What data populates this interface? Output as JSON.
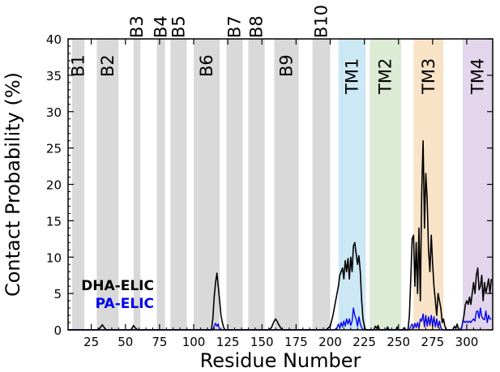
{
  "chart_data": {
    "type": "line",
    "xlabel": "Residue Number",
    "ylabel": "Contact Probability (%)",
    "xlim": [
      8,
      319
    ],
    "ylim": [
      0,
      40
    ],
    "xticks": [
      25,
      50,
      75,
      100,
      125,
      150,
      175,
      200,
      225,
      250,
      275,
      300
    ],
    "yticks": [
      0,
      5,
      10,
      15,
      20,
      25,
      30,
      35,
      40
    ],
    "grid": false,
    "legend_position": "bottom-left",
    "regions": [
      {
        "label": "B1",
        "start": 11,
        "end": 20,
        "color": "#d9d9d9",
        "label_row": "inside"
      },
      {
        "label": "B2",
        "start": 29,
        "end": 45,
        "color": "#d9d9d9",
        "label_row": "inside"
      },
      {
        "label": "B3",
        "start": 56,
        "end": 61,
        "color": "#d9d9d9",
        "label_row": "top"
      },
      {
        "label": "B4",
        "start": 73,
        "end": 79,
        "color": "#d9d9d9",
        "label_row": "top"
      },
      {
        "label": "B5",
        "start": 83,
        "end": 95,
        "color": "#d9d9d9",
        "label_row": "top"
      },
      {
        "label": "B6",
        "start": 100,
        "end": 119,
        "color": "#d9d9d9",
        "label_row": "inside"
      },
      {
        "label": "B7",
        "start": 124,
        "end": 136,
        "color": "#d9d9d9",
        "label_row": "top"
      },
      {
        "label": "B8",
        "start": 140,
        "end": 152,
        "color": "#d9d9d9",
        "label_row": "top"
      },
      {
        "label": "B9",
        "start": 159,
        "end": 177,
        "color": "#d9d9d9",
        "label_row": "inside"
      },
      {
        "label": "B10",
        "start": 187,
        "end": 200,
        "color": "#d9d9d9",
        "label_row": "top"
      },
      {
        "label": "TM1",
        "start": 206,
        "end": 226,
        "color": "#cde8f5",
        "label_row": "inside"
      },
      {
        "label": "TM2",
        "start": 229,
        "end": 252,
        "color": "#dcebd4",
        "label_row": "inside"
      },
      {
        "label": "TM3",
        "start": 261,
        "end": 283,
        "color": "#f8e3c7",
        "label_row": "inside"
      },
      {
        "label": "TM4",
        "start": 297,
        "end": 319,
        "color": "#e3d6ec",
        "label_row": "inside"
      }
    ],
    "series": [
      {
        "name": "DHA-ELIC",
        "color": "#000000",
        "points": [
          [
            8,
            0
          ],
          [
            30,
            0
          ],
          [
            32,
            0.4
          ],
          [
            33,
            0.7
          ],
          [
            35,
            0.2
          ],
          [
            36,
            0
          ],
          [
            54,
            0
          ],
          [
            56,
            0.6
          ],
          [
            57,
            0.3
          ],
          [
            59,
            0
          ],
          [
            113,
            0
          ],
          [
            114,
            1.5
          ],
          [
            115,
            4.5
          ],
          [
            116,
            6.5
          ],
          [
            117,
            7.8
          ],
          [
            118,
            6
          ],
          [
            119,
            4
          ],
          [
            120,
            2
          ],
          [
            121,
            1
          ],
          [
            122,
            0.3
          ],
          [
            123,
            0
          ],
          [
            155,
            0
          ],
          [
            157,
            0.3
          ],
          [
            158,
            0.8
          ],
          [
            159,
            1.2
          ],
          [
            160,
            1.5
          ],
          [
            161,
            1.2
          ],
          [
            162,
            0.8
          ],
          [
            163,
            0.5
          ],
          [
            164,
            0.2
          ],
          [
            165,
            0
          ],
          [
            197,
            0
          ],
          [
            200,
            0.5
          ],
          [
            202,
            2
          ],
          [
            204,
            4
          ],
          [
            206,
            6
          ],
          [
            207,
            7.5
          ],
          [
            208,
            8
          ],
          [
            209,
            8.5
          ],
          [
            210,
            7
          ],
          [
            211,
            9.5
          ],
          [
            212,
            8
          ],
          [
            213,
            9.8
          ],
          [
            214,
            7
          ],
          [
            215,
            10
          ],
          [
            216,
            8
          ],
          [
            217,
            11.5
          ],
          [
            218,
            12
          ],
          [
            219,
            10.5
          ],
          [
            220,
            9
          ],
          [
            221,
            10.2
          ],
          [
            222,
            8
          ],
          [
            223,
            4
          ],
          [
            224,
            1.5
          ],
          [
            225,
            0.5
          ],
          [
            226,
            0
          ],
          [
            232,
            0
          ],
          [
            233,
            0.5
          ],
          [
            234,
            0.2
          ],
          [
            235,
            0.6
          ],
          [
            236,
            0
          ],
          [
            241,
            0
          ],
          [
            242,
            0.4
          ],
          [
            243,
            0
          ],
          [
            248,
            0
          ],
          [
            249,
            0.4
          ],
          [
            250,
            0
          ],
          [
            253,
            0
          ],
          [
            254,
            0.3
          ],
          [
            255,
            0
          ],
          [
            257,
            0
          ],
          [
            258,
            2
          ],
          [
            259,
            7
          ],
          [
            260,
            12.5
          ],
          [
            261,
            13
          ],
          [
            262,
            6
          ],
          [
            263,
            12
          ],
          [
            264,
            5
          ],
          [
            265,
            14
          ],
          [
            266,
            4
          ],
          [
            267,
            19
          ],
          [
            268,
            26
          ],
          [
            269,
            14
          ],
          [
            270,
            21.5
          ],
          [
            271,
            18
          ],
          [
            272,
            11
          ],
          [
            273,
            8
          ],
          [
            274,
            13
          ],
          [
            275,
            9
          ],
          [
            276,
            6
          ],
          [
            277,
            4
          ],
          [
            278,
            2
          ],
          [
            279,
            5
          ],
          [
            280,
            4
          ],
          [
            281,
            3
          ],
          [
            282,
            1
          ],
          [
            283,
            1.5
          ],
          [
            284,
            0.5
          ],
          [
            285,
            0
          ],
          [
            290,
            0
          ],
          [
            291,
            0.5
          ],
          [
            292,
            0.2
          ],
          [
            293,
            0.8
          ],
          [
            294,
            0
          ],
          [
            296,
            0
          ],
          [
            297,
            1
          ],
          [
            298,
            2
          ],
          [
            299,
            3.5
          ],
          [
            300,
            4
          ],
          [
            301,
            3.5
          ],
          [
            302,
            4.5
          ],
          [
            303,
            3.5
          ],
          [
            304,
            5
          ],
          [
            305,
            6.5
          ],
          [
            306,
            5
          ],
          [
            307,
            7.5
          ],
          [
            308,
            8.5
          ],
          [
            309,
            5.5
          ],
          [
            310,
            6
          ],
          [
            311,
            7.5
          ],
          [
            312,
            4
          ],
          [
            313,
            6.5
          ],
          [
            314,
            5
          ],
          [
            315,
            6
          ],
          [
            316,
            7
          ],
          [
            317,
            5
          ],
          [
            318,
            7
          ]
        ]
      },
      {
        "name": "PA-ELIC",
        "color": "#0000ee",
        "points": [
          [
            8,
            0
          ],
          [
            114,
            0
          ],
          [
            115,
            0.5
          ],
          [
            116,
            0.9
          ],
          [
            117,
            0.5
          ],
          [
            118,
            0.8
          ],
          [
            119,
            0
          ],
          [
            203,
            0
          ],
          [
            205,
            0.3
          ],
          [
            206,
            0.8
          ],
          [
            207,
            0.2
          ],
          [
            208,
            1
          ],
          [
            209,
            0.4
          ],
          [
            210,
            1.2
          ],
          [
            211,
            0.5
          ],
          [
            212,
            1.5
          ],
          [
            213,
            0.8
          ],
          [
            214,
            1.5
          ],
          [
            215,
            0.6
          ],
          [
            216,
            1.2
          ],
          [
            217,
            3
          ],
          [
            218,
            2
          ],
          [
            219,
            1.5
          ],
          [
            220,
            0.5
          ],
          [
            221,
            1.8
          ],
          [
            222,
            0.8
          ],
          [
            223,
            0.3
          ],
          [
            224,
            0
          ],
          [
            258,
            0
          ],
          [
            259,
            0.5
          ],
          [
            260,
            0.8
          ],
          [
            261,
            0.2
          ],
          [
            262,
            0.9
          ],
          [
            263,
            0.3
          ],
          [
            264,
            1
          ],
          [
            265,
            0.2
          ],
          [
            266,
            1.5
          ],
          [
            267,
            1.2
          ],
          [
            268,
            2.2
          ],
          [
            269,
            0.4
          ],
          [
            270,
            2
          ],
          [
            271,
            0.5
          ],
          [
            272,
            1.8
          ],
          [
            273,
            0.6
          ],
          [
            274,
            2
          ],
          [
            275,
            0.5
          ],
          [
            276,
            1.8
          ],
          [
            277,
            0.4
          ],
          [
            278,
            1.5
          ],
          [
            279,
            0.3
          ],
          [
            280,
            1.2
          ],
          [
            281,
            0.3
          ],
          [
            282,
            0
          ],
          [
            296,
            0
          ],
          [
            297,
            1
          ],
          [
            298,
            1.2
          ],
          [
            299,
            1
          ],
          [
            300,
            1.2
          ],
          [
            301,
            1
          ],
          [
            302,
            1.2
          ],
          [
            303,
            1
          ],
          [
            304,
            1.3
          ],
          [
            305,
            1.5
          ],
          [
            306,
            1.2
          ],
          [
            307,
            2.5
          ],
          [
            308,
            2.6
          ],
          [
            309,
            1.6
          ],
          [
            310,
            3
          ],
          [
            311,
            1.8
          ],
          [
            312,
            1.5
          ],
          [
            313,
            1.4
          ],
          [
            314,
            2.6
          ],
          [
            315,
            1
          ],
          [
            316,
            2
          ],
          [
            317,
            1.5
          ],
          [
            318,
            1.5
          ]
        ]
      }
    ]
  }
}
